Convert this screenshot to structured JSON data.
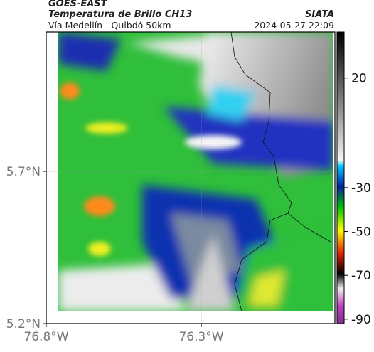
{
  "header": {
    "satellite": "GOES-EAST",
    "product": "Temperatura de Brillo CH13",
    "source": "SIATA",
    "route": "Vía Medellín - Quibdó 50km",
    "timestamp": "2024-05-27 22:09"
  },
  "map": {
    "xlim": [
      -76.8,
      -75.869
    ],
    "ylim": [
      5.2,
      6.158
    ],
    "xticks": [
      {
        "value": -76.8,
        "label": "76.8°W"
      },
      {
        "value": -76.3,
        "label": "76.3°W"
      }
    ],
    "yticks": [
      {
        "value": 5.2,
        "label": "5.2°N"
      },
      {
        "value": 5.7,
        "label": "5.7°N"
      }
    ],
    "grid": true
  },
  "colorbar": {
    "lim": [
      -92,
      41
    ],
    "ticks": [
      20,
      -30,
      -50,
      -70,
      -90
    ]
  }
}
